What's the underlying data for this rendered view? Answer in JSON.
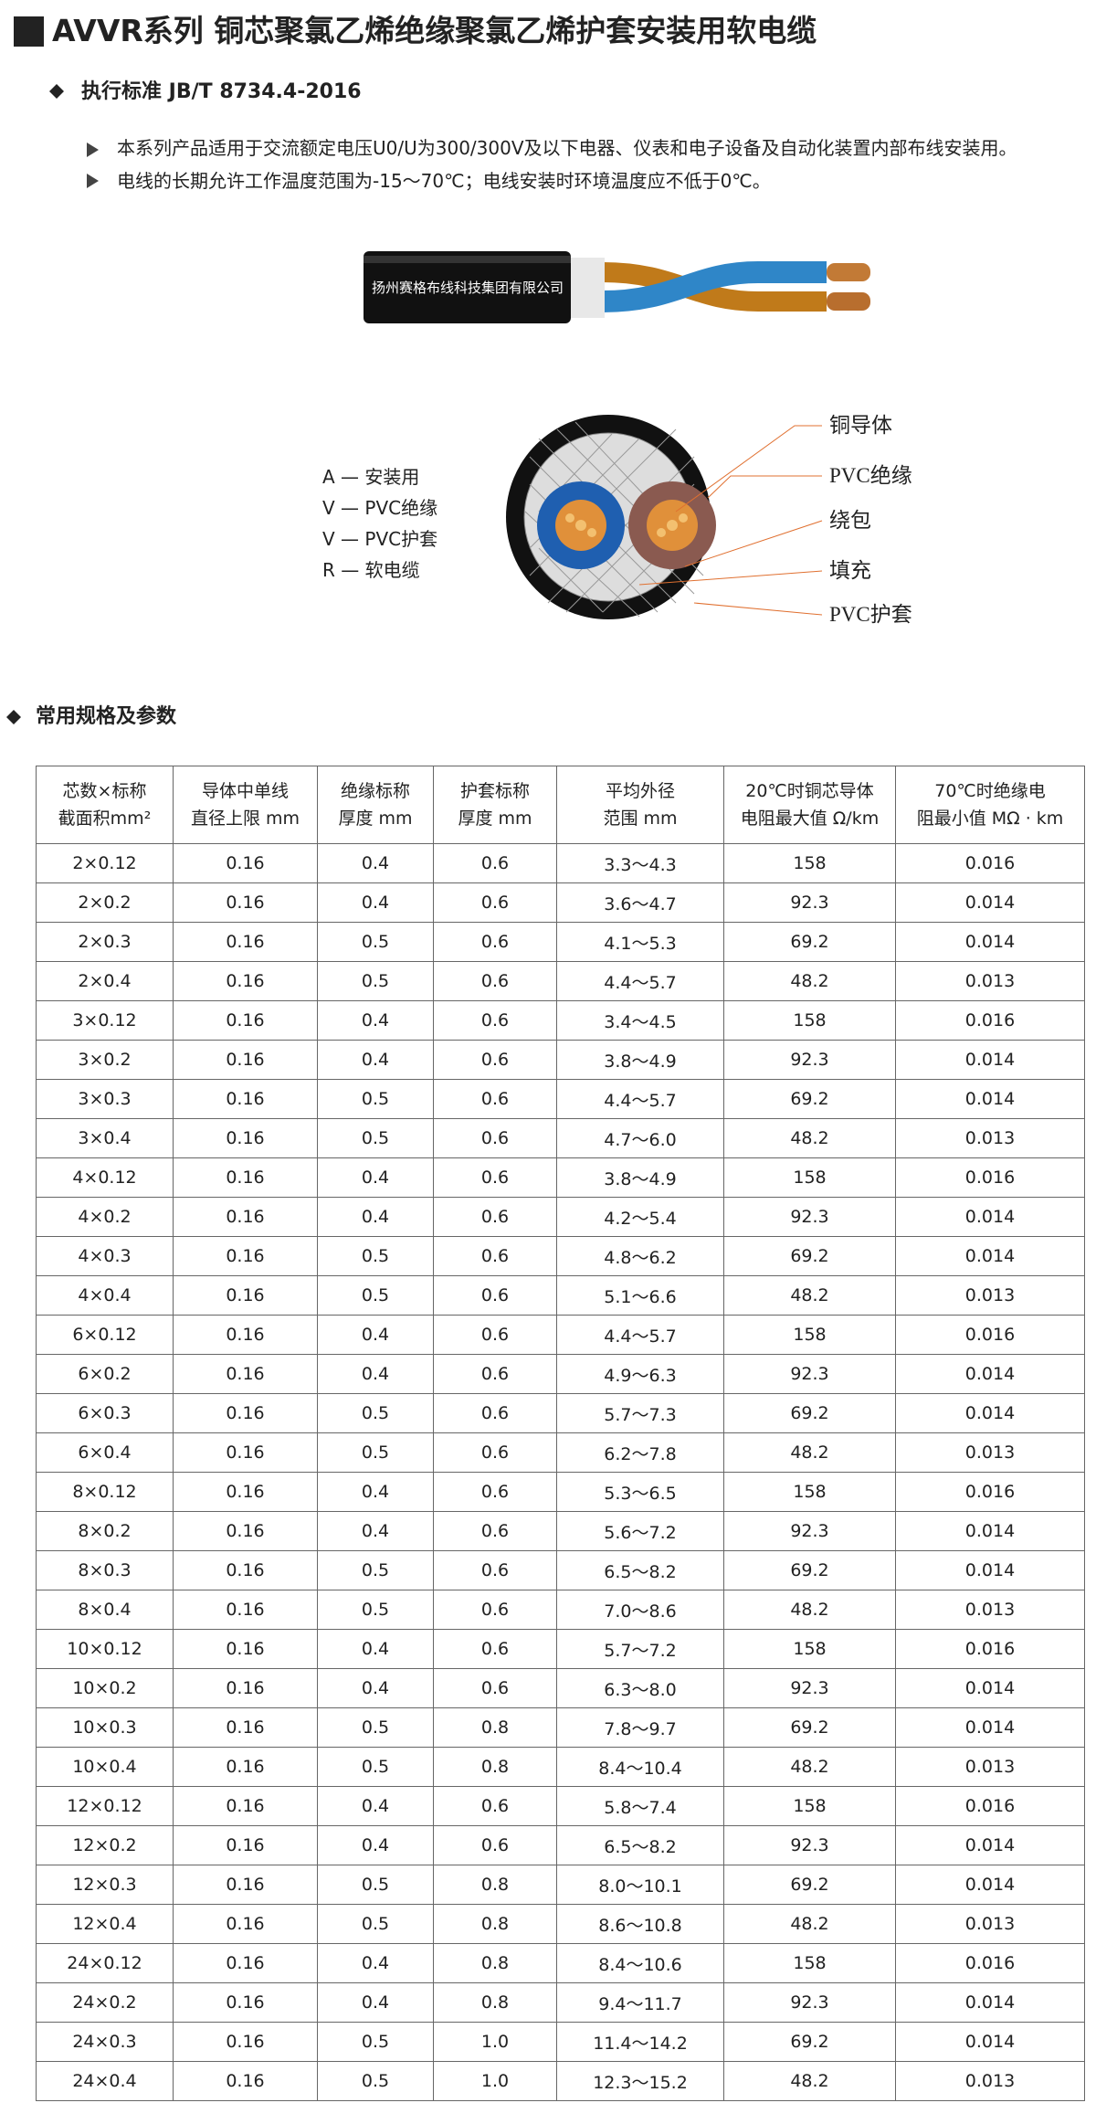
{
  "header": {
    "title": "AVVR系列 铜芯聚氯乙烯绝缘聚氯乙烯护套安装用软电缆",
    "standard": "执行标准 JB/T 8734.4-2016"
  },
  "notes": [
    "本系列产品适用于交流额定电压U0/U为300/300V及以下电器、仪表和电子设备及自动化装置内部布线安装用。",
    "电线的长期允许工作温度范围为-15～70℃；电线安装时环境温度应不低于0℃。"
  ],
  "cable_text": "扬州赛格布线科技集团有限公司",
  "legend": [
    "A — 安装用",
    "V — PVC绝缘",
    "V — PVC护套",
    "R — 软电缆"
  ],
  "callouts": [
    "铜导体",
    "PVC绝缘",
    "绕包",
    "填充",
    "PVC护套"
  ],
  "section_title": "常用规格及参数",
  "table": {
    "headers": [
      [
        "芯数×标称",
        "截面积mm²"
      ],
      [
        "导体中单线",
        "直径上限 mm"
      ],
      [
        "绝缘标称",
        "厚度 mm"
      ],
      [
        "护套标称",
        "厚度 mm"
      ],
      [
        "平均外径",
        "范围 mm"
      ],
      [
        "20℃时铜芯导体",
        "电阻最大值 Ω/km"
      ],
      [
        "70℃时绝缘电",
        "阻最小值 MΩ · km"
      ]
    ],
    "rows": [
      [
        "2×0.12",
        "0.16",
        "0.4",
        "0.6",
        "3.3～4.3",
        "158",
        "0.016"
      ],
      [
        "2×0.2",
        "0.16",
        "0.4",
        "0.6",
        "3.6～4.7",
        "92.3",
        "0.014"
      ],
      [
        "2×0.3",
        "0.16",
        "0.5",
        "0.6",
        "4.1～5.3",
        "69.2",
        "0.014"
      ],
      [
        "2×0.4",
        "0.16",
        "0.5",
        "0.6",
        "4.4～5.7",
        "48.2",
        "0.013"
      ],
      [
        "3×0.12",
        "0.16",
        "0.4",
        "0.6",
        "3.4～4.5",
        "158",
        "0.016"
      ],
      [
        "3×0.2",
        "0.16",
        "0.4",
        "0.6",
        "3.8～4.9",
        "92.3",
        "0.014"
      ],
      [
        "3×0.3",
        "0.16",
        "0.5",
        "0.6",
        "4.4～5.7",
        "69.2",
        "0.014"
      ],
      [
        "3×0.4",
        "0.16",
        "0.5",
        "0.6",
        "4.7～6.0",
        "48.2",
        "0.013"
      ],
      [
        "4×0.12",
        "0.16",
        "0.4",
        "0.6",
        "3.8～4.9",
        "158",
        "0.016"
      ],
      [
        "4×0.2",
        "0.16",
        "0.4",
        "0.6",
        "4.2～5.4",
        "92.3",
        "0.014"
      ],
      [
        "4×0.3",
        "0.16",
        "0.5",
        "0.6",
        "4.8～6.2",
        "69.2",
        "0.014"
      ],
      [
        "4×0.4",
        "0.16",
        "0.5",
        "0.6",
        "5.1～6.6",
        "48.2",
        "0.013"
      ],
      [
        "6×0.12",
        "0.16",
        "0.4",
        "0.6",
        "4.4～5.7",
        "158",
        "0.016"
      ],
      [
        "6×0.2",
        "0.16",
        "0.4",
        "0.6",
        "4.9～6.3",
        "92.3",
        "0.014"
      ],
      [
        "6×0.3",
        "0.16",
        "0.5",
        "0.6",
        "5.7～7.3",
        "69.2",
        "0.014"
      ],
      [
        "6×0.4",
        "0.16",
        "0.5",
        "0.6",
        "6.2～7.8",
        "48.2",
        "0.013"
      ],
      [
        "8×0.12",
        "0.16",
        "0.4",
        "0.6",
        "5.3～6.5",
        "158",
        "0.016"
      ],
      [
        "8×0.2",
        "0.16",
        "0.4",
        "0.6",
        "5.6～7.2",
        "92.3",
        "0.014"
      ],
      [
        "8×0.3",
        "0.16",
        "0.5",
        "0.6",
        "6.5～8.2",
        "69.2",
        "0.014"
      ],
      [
        "8×0.4",
        "0.16",
        "0.5",
        "0.6",
        "7.0～8.6",
        "48.2",
        "0.013"
      ],
      [
        "10×0.12",
        "0.16",
        "0.4",
        "0.6",
        "5.7～7.2",
        "158",
        "0.016"
      ],
      [
        "10×0.2",
        "0.16",
        "0.4",
        "0.6",
        "6.3～8.0",
        "92.3",
        "0.014"
      ],
      [
        "10×0.3",
        "0.16",
        "0.5",
        "0.8",
        "7.8～9.7",
        "69.2",
        "0.014"
      ],
      [
        "10×0.4",
        "0.16",
        "0.5",
        "0.8",
        "8.4～10.4",
        "48.2",
        "0.013"
      ],
      [
        "12×0.12",
        "0.16",
        "0.4",
        "0.6",
        "5.8～7.4",
        "158",
        "0.016"
      ],
      [
        "12×0.2",
        "0.16",
        "0.4",
        "0.6",
        "6.5～8.2",
        "92.3",
        "0.014"
      ],
      [
        "12×0.3",
        "0.16",
        "0.5",
        "0.8",
        "8.0～10.1",
        "69.2",
        "0.014"
      ],
      [
        "12×0.4",
        "0.16",
        "0.5",
        "0.8",
        "8.6～10.8",
        "48.2",
        "0.013"
      ],
      [
        "24×0.12",
        "0.16",
        "0.4",
        "0.8",
        "8.4～10.6",
        "158",
        "0.016"
      ],
      [
        "24×0.2",
        "0.16",
        "0.4",
        "0.8",
        "9.4～11.7",
        "92.3",
        "0.014"
      ],
      [
        "24×0.3",
        "0.16",
        "0.5",
        "1.0",
        "11.4～14.2",
        "69.2",
        "0.014"
      ],
      [
        "24×0.4",
        "0.16",
        "0.5",
        "1.0",
        "12.3～15.2",
        "48.2",
        "0.013"
      ]
    ]
  }
}
